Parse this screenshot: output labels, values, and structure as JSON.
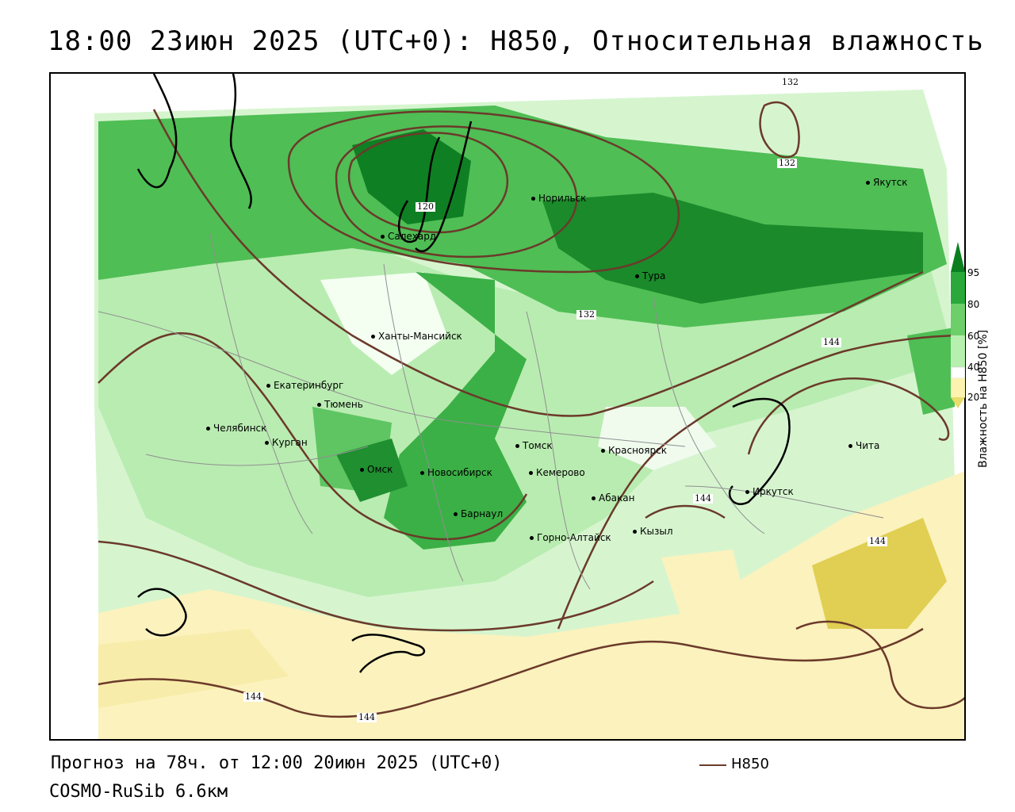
{
  "title": "18:00 23июн 2025 (UTC+0): H850, Относительная влажность",
  "footer": {
    "forecast": "Прогноз на 78ч. от 12:00 20июн 2025 (UTC+0)",
    "model": "COSMO-RuSib 6.6км"
  },
  "legend": {
    "line_label": "H850",
    "line_color": "#6b3a2a"
  },
  "colorbar": {
    "title": "Влажность на H850 [%]",
    "ticks": [
      "95",
      "80",
      "60",
      "40",
      "20"
    ],
    "colors": [
      "#0b7f1f",
      "#2aa83a",
      "#6dcf6a",
      "#b7efae",
      "#ffffff",
      "#fdf3b0",
      "#e8dc6a"
    ]
  },
  "cities": [
    {
      "name": "Норильск"
    },
    {
      "name": "Салехард"
    },
    {
      "name": "Тура"
    },
    {
      "name": "Якутск"
    },
    {
      "name": "Ханты-Мансийск"
    },
    {
      "name": "Екатеринбург"
    },
    {
      "name": "Тюмень"
    },
    {
      "name": "Челябинск"
    },
    {
      "name": "Курган"
    },
    {
      "name": "Омск"
    },
    {
      "name": "Новосибирск"
    },
    {
      "name": "Томск"
    },
    {
      "name": "Кемерово"
    },
    {
      "name": "Красноярск"
    },
    {
      "name": "Барнаул"
    },
    {
      "name": "Абакан"
    },
    {
      "name": "Горно-Алтайск"
    },
    {
      "name": "Кызыл"
    },
    {
      "name": "Иркутск"
    },
    {
      "name": "Чита"
    }
  ],
  "isolines": [
    "132",
    "132",
    "120",
    "132",
    "144",
    "144",
    "144",
    "144",
    "144"
  ]
}
